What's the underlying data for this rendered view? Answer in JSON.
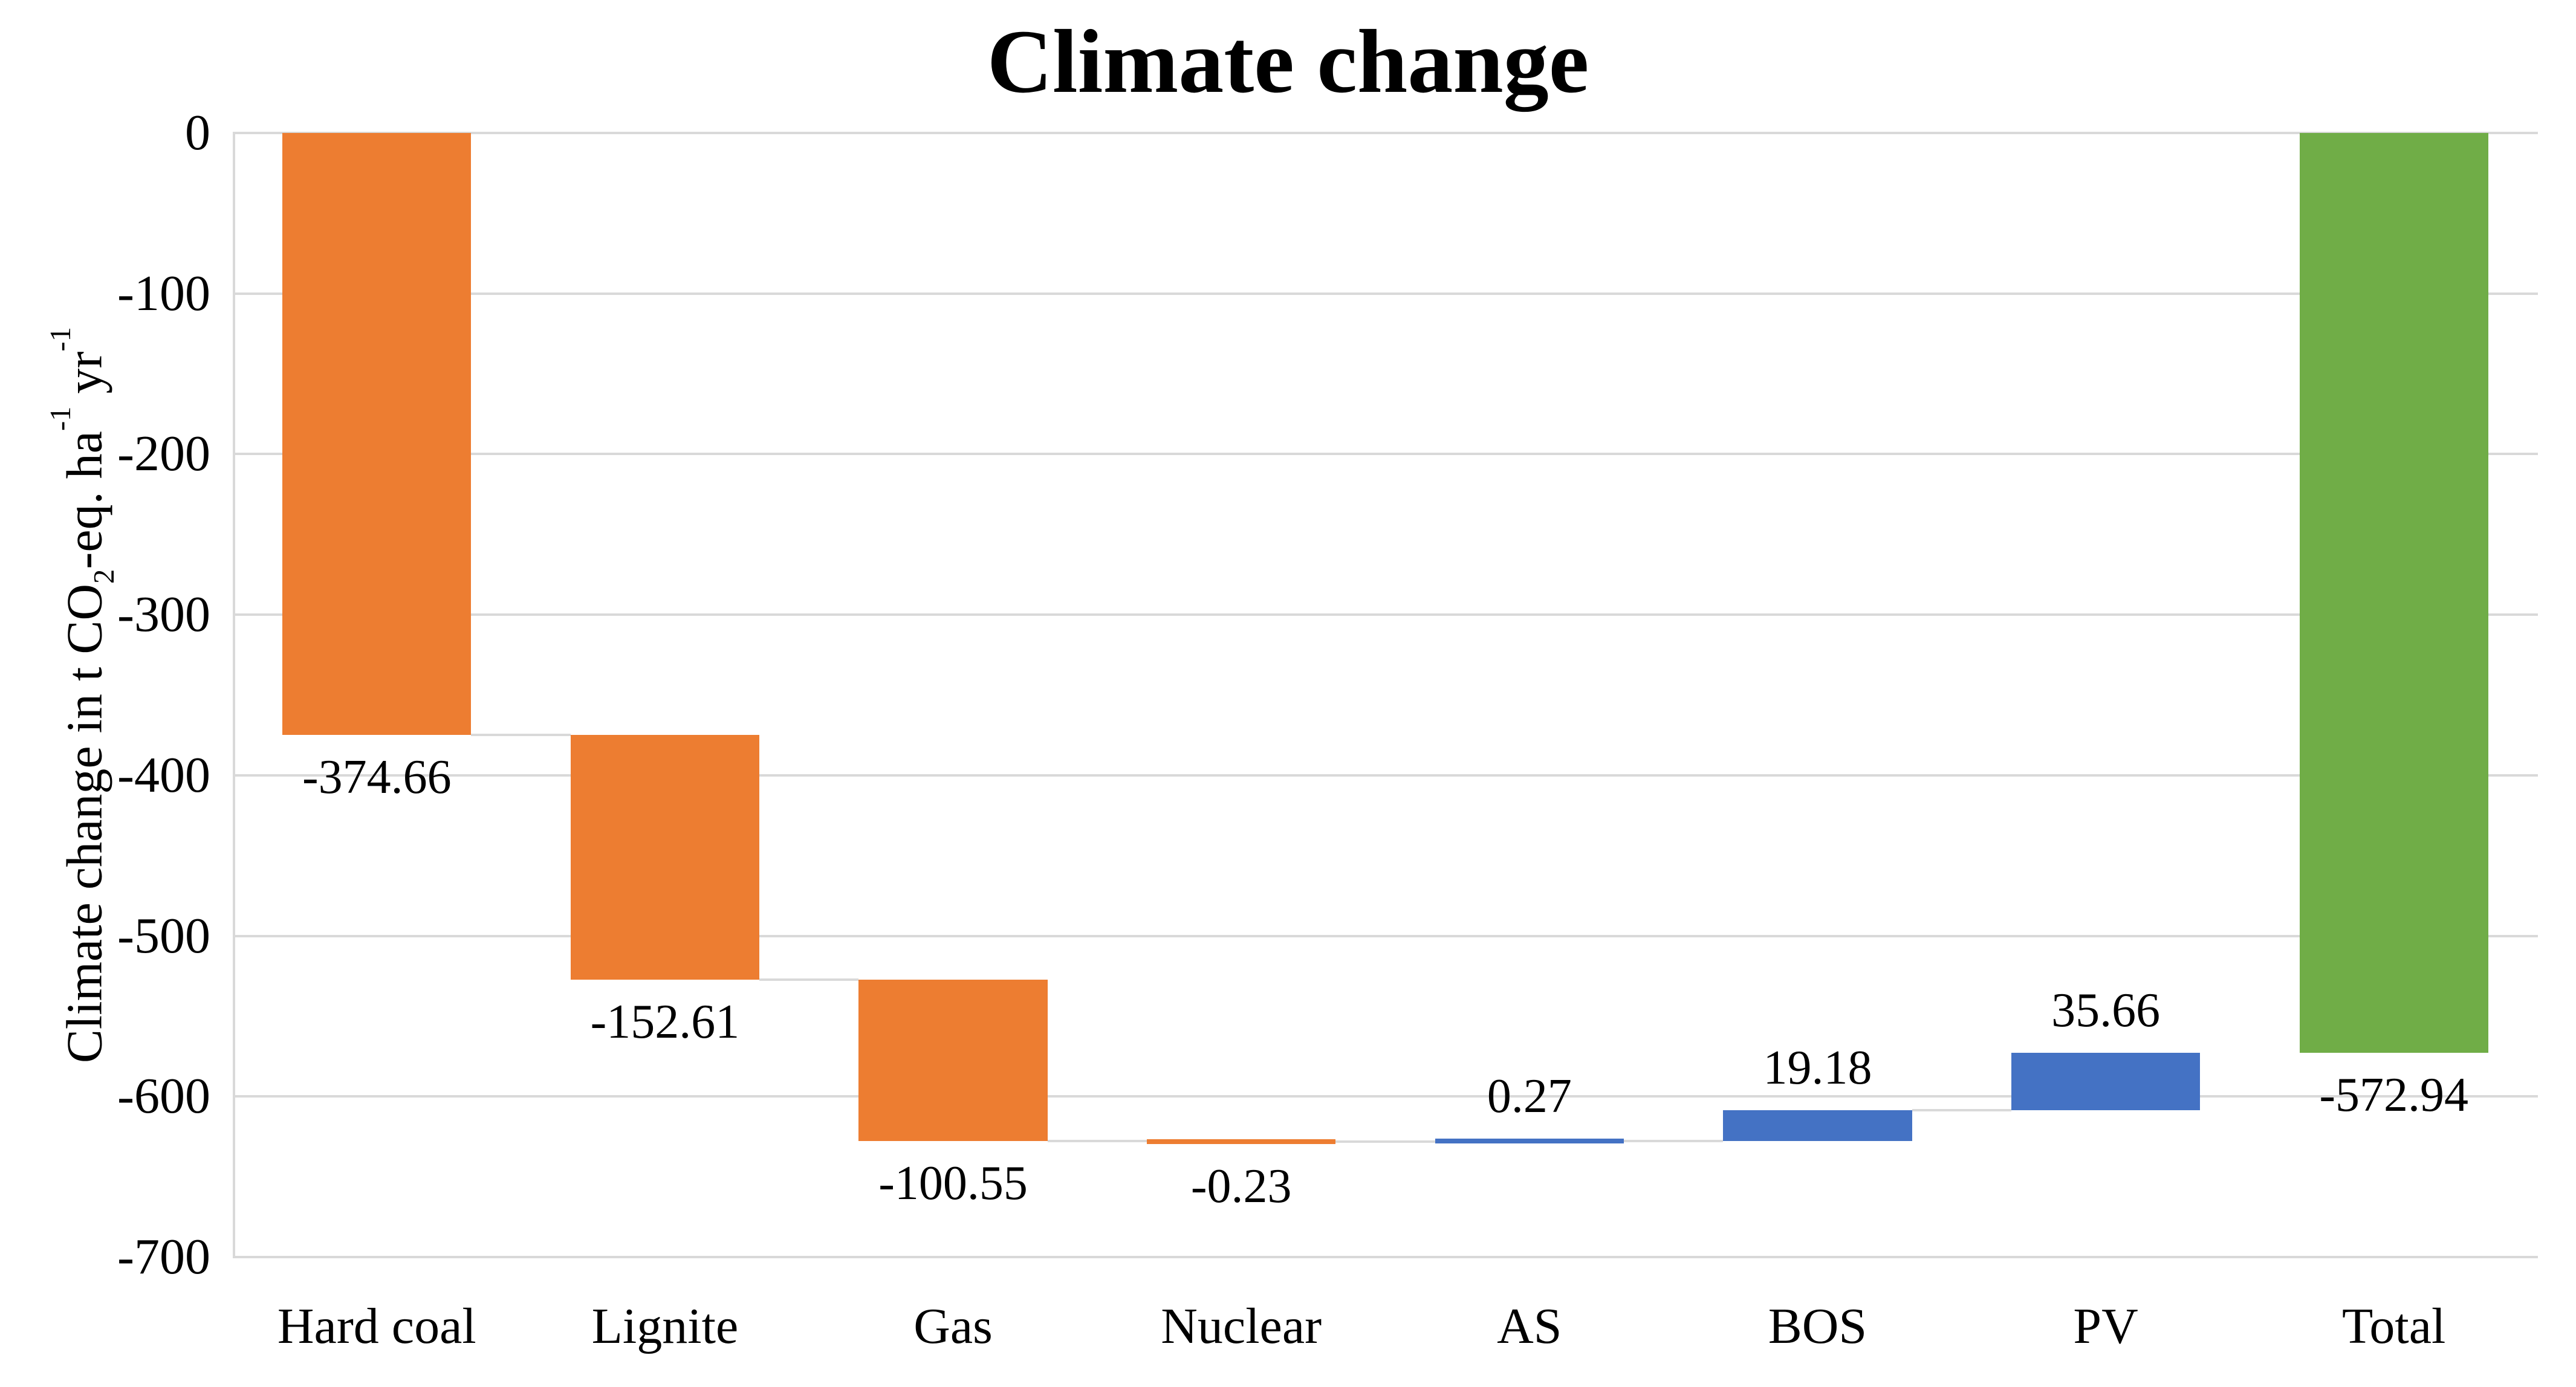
{
  "page": {
    "background": "#FFFFFF"
  },
  "chart_data": {
    "type": "bar",
    "subtype": "waterfall",
    "title": "Climate change",
    "ylabel": "Climate change in t CO2-eq. ha-1 yr-1",
    "ylabel_parts": {
      "p1": "Climate change in t CO",
      "sub1": "2",
      "p2": "-eq. ha",
      "sup1": "-1",
      "p3": " yr",
      "sup2": "-1"
    },
    "categories": [
      "Hard coal",
      "Lignite",
      "Gas",
      "Nuclear",
      "AS",
      "BOS",
      "PV",
      "Total"
    ],
    "values": [
      -374.66,
      -152.61,
      -100.55,
      -0.23,
      0.27,
      19.18,
      35.66,
      -572.94
    ],
    "labels": [
      "-374.66",
      "-152.61",
      "-100.55",
      "-0.23",
      "0.27",
      "19.18",
      "35.66",
      "-572.94"
    ],
    "roles": [
      "decrease",
      "decrease",
      "decrease",
      "decrease",
      "increase",
      "increase",
      "increase",
      "total"
    ],
    "colors": {
      "decrease": "#ED7D31",
      "increase": "#4472C4",
      "total": "#70AD47"
    },
    "text_color": "#000000",
    "gridline_color": "#D9D9D9",
    "connector_color": "#D9D9D9",
    "ylim": [
      -700,
      0
    ],
    "ytick_step": 100,
    "yticks": [
      "0",
      "-100",
      "-200",
      "-300",
      "-400",
      "-500",
      "-600",
      "-700"
    ],
    "ytick_values": [
      0,
      -100,
      -200,
      -300,
      -400,
      -500,
      -600,
      -700
    ],
    "grid": "horizontal",
    "legend": "none"
  }
}
